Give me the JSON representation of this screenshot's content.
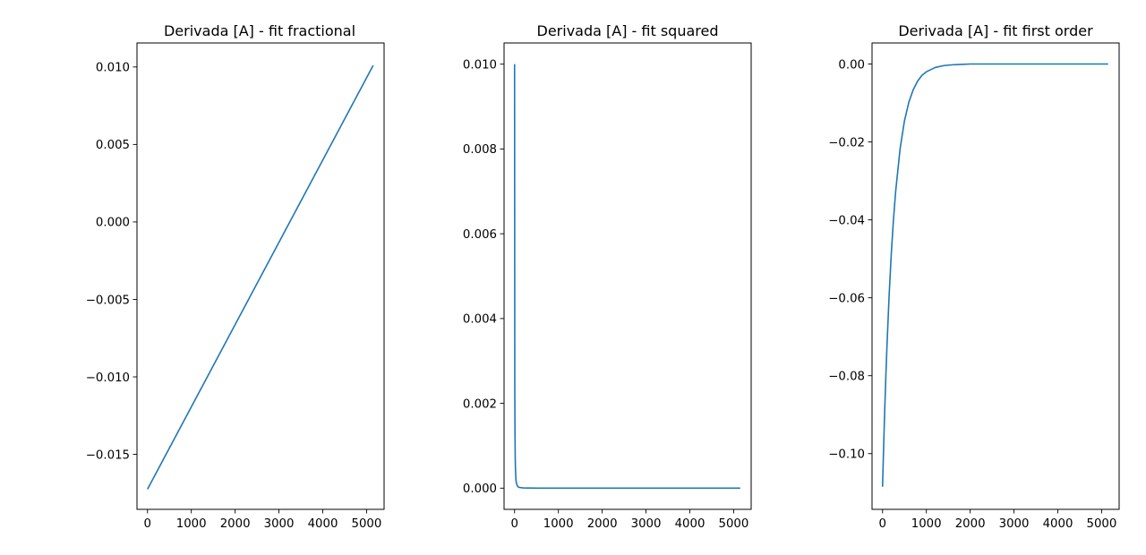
{
  "figure": {
    "background": "#ffffff"
  },
  "chart_data": [
    {
      "type": "line",
      "title": "Derivada [A] - fit fractional",
      "xlabel": "",
      "ylabel": "",
      "xlim": [
        -240,
        5400
      ],
      "ylim": [
        -0.01855,
        0.01155
      ],
      "xticks": [
        0,
        1000,
        2000,
        3000,
        4000,
        5000
      ],
      "yticks": [
        -0.015,
        -0.01,
        -0.005,
        0.0,
        0.005,
        0.01
      ],
      "xtick_labels": [
        "0",
        "1000",
        "2000",
        "3000",
        "4000",
        "5000"
      ],
      "ytick_labels": [
        "−0.015",
        "−0.010",
        "−0.005",
        "0.000",
        "0.005",
        "0.010"
      ],
      "grid": false,
      "series": [
        {
          "color": "#1f77b4",
          "x": [
            0,
            5150
          ],
          "y": [
            -0.01725,
            0.0101
          ]
        }
      ]
    },
    {
      "type": "line",
      "title": "Derivada [A] - fit squared",
      "xlabel": "",
      "ylabel": "",
      "xlim": [
        -240,
        5400
      ],
      "ylim": [
        -0.0005,
        0.0105
      ],
      "xticks": [
        0,
        1000,
        2000,
        3000,
        4000,
        5000
      ],
      "yticks": [
        0.0,
        0.002,
        0.004,
        0.006,
        0.008,
        0.01
      ],
      "xtick_labels": [
        "0",
        "1000",
        "2000",
        "3000",
        "4000",
        "5000"
      ],
      "ytick_labels": [
        "0.000",
        "0.002",
        "0.004",
        "0.006",
        "0.008",
        "0.010"
      ],
      "grid": false,
      "series": [
        {
          "color": "#1f77b4",
          "x": [
            0,
            5,
            10,
            15,
            20,
            30,
            40,
            60,
            80,
            120,
            200,
            500,
            1000,
            2000,
            3000,
            4000,
            5150
          ],
          "y": [
            0.01,
            0.00222,
            0.00125,
            0.00071,
            0.00046,
            0.00022,
            0.00013,
            6e-05,
            3e-05,
            1.5e-05,
            6e-06,
            1e-06,
            0.0,
            0.0,
            0.0,
            0.0,
            0.0
          ]
        }
      ]
    },
    {
      "type": "line",
      "title": "Derivada [A] - fit first order",
      "xlabel": "",
      "ylabel": "",
      "xlim": [
        -240,
        5400
      ],
      "ylim": [
        -0.1143,
        0.0054
      ],
      "xticks": [
        0,
        1000,
        2000,
        3000,
        4000,
        5000
      ],
      "yticks": [
        -0.1,
        -0.08,
        -0.06,
        -0.04,
        -0.02,
        0.0
      ],
      "xtick_labels": [
        "0",
        "1000",
        "2000",
        "3000",
        "4000",
        "5000"
      ],
      "ytick_labels": [
        "−0.10",
        "−0.08",
        "−0.06",
        "−0.04",
        "−0.02",
        "0.00"
      ],
      "grid": false,
      "series": [
        {
          "color": "#1f77b4",
          "x": [
            0,
            25,
            50,
            75,
            100,
            150,
            200,
            250,
            300,
            400,
            500,
            600,
            700,
            800,
            900,
            1000,
            1200,
            1400,
            1600,
            1800,
            2000,
            2500,
            3000,
            4000,
            5150
          ],
          "y": [
            -0.1085,
            -0.0981,
            -0.0887,
            -0.0803,
            -0.0726,
            -0.0594,
            -0.0486,
            -0.0398,
            -0.0326,
            -0.0218,
            -0.0146,
            -0.0098,
            -0.0066,
            -0.0044,
            -0.0029,
            -0.002,
            -0.0009,
            -0.0004,
            -0.0002,
            -0.0001,
            0.0,
            0.0,
            0.0,
            0.0,
            0.0
          ]
        }
      ]
    }
  ]
}
